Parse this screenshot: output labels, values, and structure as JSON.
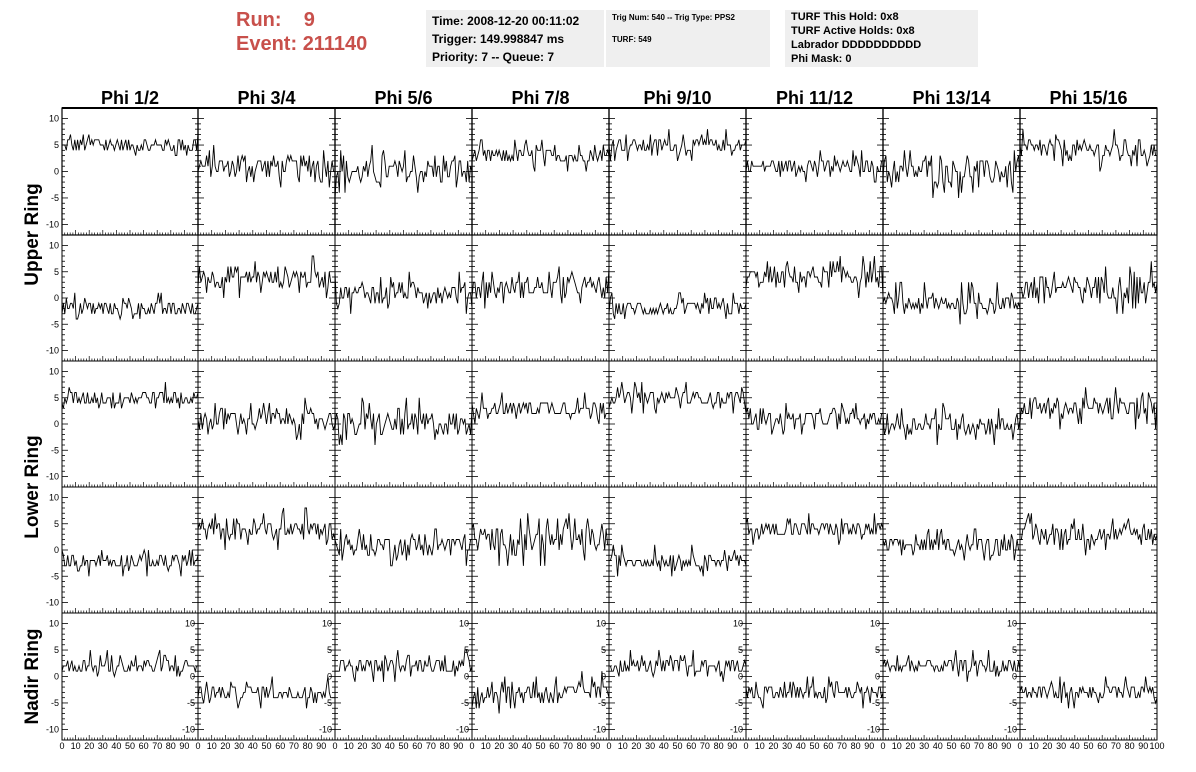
{
  "header": {
    "run_label": "Run:",
    "run_value": "9",
    "event_label": "Event:",
    "event_value": "211140",
    "accent_color": "#c8504b",
    "time_box": [
      "Time: 2008-12-20 00:11:02",
      "Trigger: 149.998847 ms",
      "Priority: 7 -- Queue: 7"
    ],
    "trig_box": [
      "Trig Num: 540 -- Trig Type: PPS2",
      "",
      "TURF: 549"
    ],
    "turf_box": [
      "TURF This Hold: 0x8",
      "TURF Active Holds: 0x8",
      "Labrador DDDDDDDDDD",
      "Phi Mask: 0"
    ]
  },
  "chart_data": {
    "type": "line",
    "columns": [
      "Phi 1/2",
      "Phi 3/4",
      "Phi 5/6",
      "Phi 7/8",
      "Phi 9/10",
      "Phi 11/12",
      "Phi 13/14",
      "Phi 15/16"
    ],
    "row_groups": [
      {
        "label": "Upper Ring",
        "rows": [
          0,
          1
        ]
      },
      {
        "label": "Lower Ring",
        "rows": [
          2,
          3
        ]
      },
      {
        "label": "Nadir Ring",
        "rows": [
          4
        ]
      }
    ],
    "xlim": [
      0,
      100
    ],
    "ylim": [
      -12,
      12
    ],
    "y_ticks": [
      -10,
      -5,
      0,
      5,
      10
    ],
    "x_tick_labels": [
      "0",
      "10",
      "20",
      "30",
      "40",
      "50",
      "60",
      "70",
      "80",
      "90",
      "100"
    ],
    "samples_per_trace": 96,
    "traces": [
      [
        {
          "base": 5,
          "spread": 3
        },
        {
          "base": 1,
          "spread": 4
        },
        {
          "base": 0,
          "spread": 5
        },
        {
          "base": 3,
          "spread": 3
        },
        {
          "base": 5,
          "spread": 3
        },
        {
          "base": 1,
          "spread": 3
        },
        {
          "base": 0,
          "spread": 5
        },
        {
          "base": 4,
          "spread": 4
        }
      ],
      [
        {
          "base": -2,
          "spread": 3
        },
        {
          "base": 4,
          "spread": 4
        },
        {
          "base": 1,
          "spread": 4
        },
        {
          "base": 2,
          "spread": 4
        },
        {
          "base": -2,
          "spread": 3
        },
        {
          "base": 4,
          "spread": 4
        },
        {
          "base": -1,
          "spread": 4
        },
        {
          "base": 2,
          "spread": 5
        }
      ],
      [
        {
          "base": 5,
          "spread": 3
        },
        {
          "base": 1,
          "spread": 4
        },
        {
          "base": 0,
          "spread": 5
        },
        {
          "base": 3,
          "spread": 3
        },
        {
          "base": 5,
          "spread": 3
        },
        {
          "base": 1,
          "spread": 3
        },
        {
          "base": 0,
          "spread": 4
        },
        {
          "base": 3,
          "spread": 4
        }
      ],
      [
        {
          "base": -2,
          "spread": 3
        },
        {
          "base": 4,
          "spread": 4
        },
        {
          "base": 1,
          "spread": 4
        },
        {
          "base": 2,
          "spread": 5
        },
        {
          "base": -2,
          "spread": 3
        },
        {
          "base": 4,
          "spread": 3
        },
        {
          "base": 1,
          "spread": 3
        },
        {
          "base": 3,
          "spread": 4
        }
      ],
      [
        {
          "base": 2,
          "spread": 3
        },
        {
          "base": -3,
          "spread": 3
        },
        {
          "base": 2,
          "spread": 3
        },
        {
          "base": -3,
          "spread": 4
        },
        {
          "base": 2,
          "spread": 3
        },
        {
          "base": -3,
          "spread": 3
        },
        {
          "base": 2,
          "spread": 3
        },
        {
          "base": -3,
          "spread": 3
        }
      ]
    ],
    "line_color": "#000000",
    "grid": false,
    "legend": "none"
  }
}
